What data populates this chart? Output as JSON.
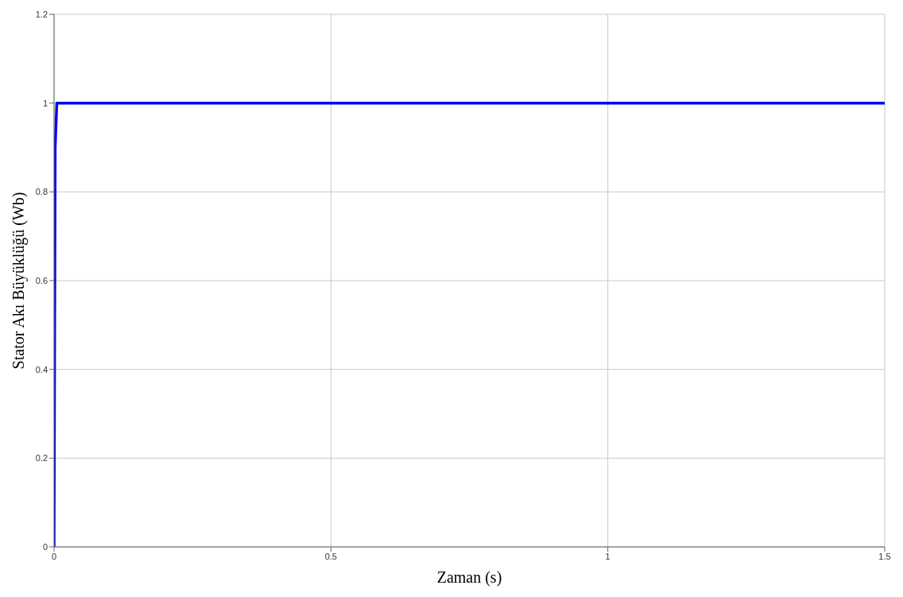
{
  "chart_data": {
    "type": "line",
    "xlabel": "Zaman (s)",
    "ylabel": "Stator Akı Büyüklüğü (Wb)",
    "x": [
      0,
      0.002,
      0.005,
      1.5
    ],
    "series": [
      {
        "color": "#0000ff",
        "values": [
          0,
          0.9,
          1,
          1
        ]
      }
    ],
    "xlim": [
      0,
      1.5
    ],
    "xticks": [
      0,
      0.5,
      1,
      1.5
    ],
    "ylim": [
      0,
      1.2
    ],
    "yticks": [
      0,
      0.2,
      0.4,
      0.6,
      0.8,
      1,
      1.2
    ],
    "grid": true,
    "marker": "none",
    "line_style": "solid"
  }
}
